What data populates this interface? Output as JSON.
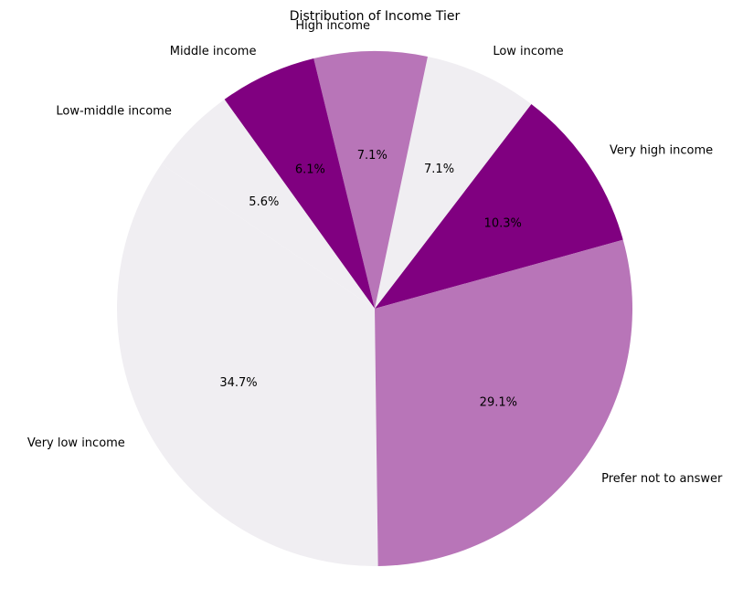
{
  "chart_data": {
    "type": "pie",
    "title": "Distribution of Income Tier",
    "slices": [
      {
        "label": "Very high income",
        "value": 10.3,
        "pct_label": "10.3%",
        "color": "#800080"
      },
      {
        "label": "Low income",
        "value": 7.1,
        "pct_label": "7.1%",
        "color": "#f0eef2"
      },
      {
        "label": "High income",
        "value": 7.1,
        "pct_label": "7.1%",
        "color": "#b875b8"
      },
      {
        "label": "Middle income",
        "value": 6.1,
        "pct_label": "6.1%",
        "color": "#800080"
      },
      {
        "label": "Low-middle income",
        "value": 5.6,
        "pct_label": "5.6%",
        "color": "#f0eef2"
      },
      {
        "label": "Very low income",
        "value": 34.7,
        "pct_label": "34.7%",
        "color": "#f0eef2"
      },
      {
        "label": "Prefer not to answer",
        "value": 29.1,
        "pct_label": "29.1%",
        "color": "#b875b8"
      }
    ],
    "legend": "none"
  }
}
